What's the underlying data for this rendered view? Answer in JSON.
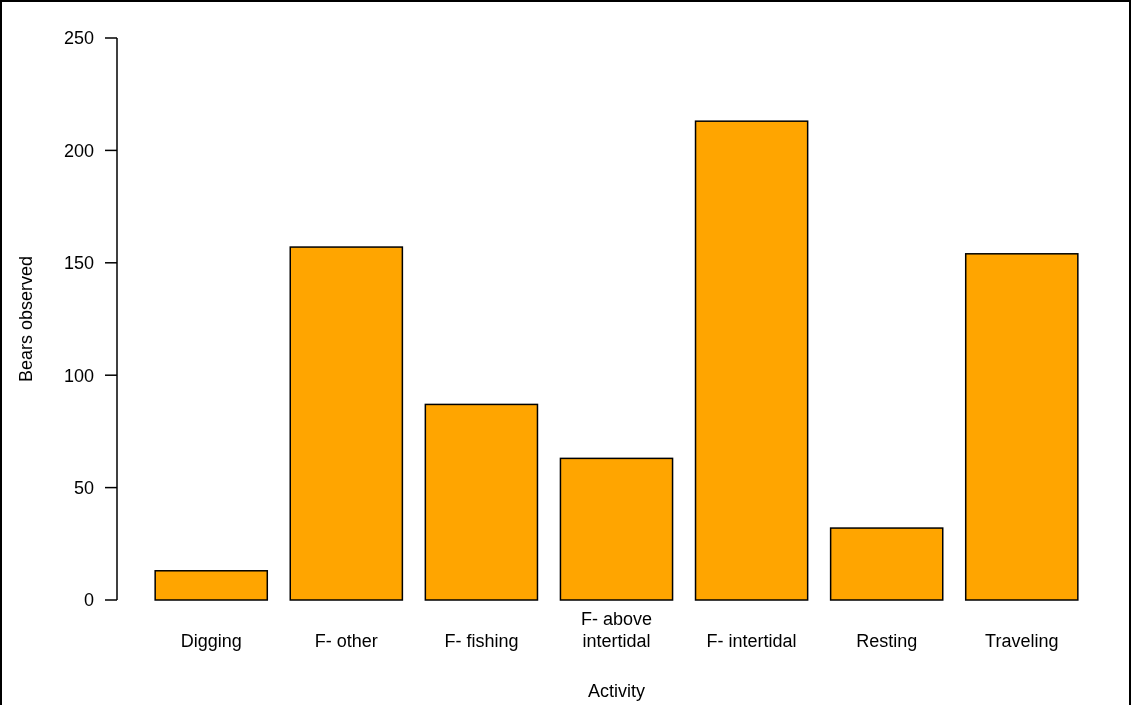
{
  "chart_data": {
    "type": "bar",
    "xlabel": "Activity",
    "ylabel": "Bears observed",
    "categories": [
      "Digging",
      "F- other",
      "F- fishing",
      "F- above intertidal",
      "F- intertidal",
      "Resting",
      "Traveling"
    ],
    "values": [
      13,
      157,
      87,
      63,
      213,
      32,
      154
    ],
    "color": "#ffa500",
    "ylim": [
      0,
      250
    ],
    "yticks": [
      0,
      50,
      100,
      150,
      200,
      250
    ],
    "grid": false
  }
}
